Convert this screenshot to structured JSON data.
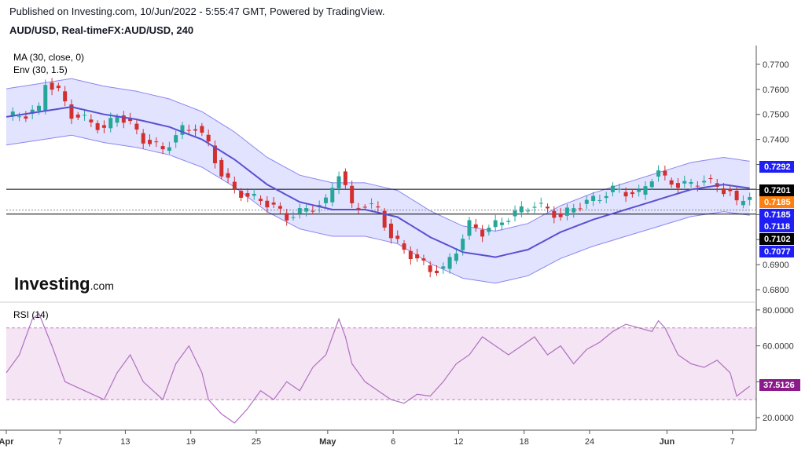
{
  "header": {
    "published": "Published on Investing.com, 10/Jun/2022 - 5:55:47 GMT, Powered by TradingView.",
    "symbol": "AUD/USD, Real-timeFX:AUD/USD, 240"
  },
  "logo": {
    "text": "Investing",
    "suffix": ".com"
  },
  "colors": {
    "up": "#26a69a",
    "down": "#d32f2f",
    "ma": "#5a50d0",
    "band_fill": "#d9dcff",
    "band_line": "#8c86f0",
    "rsi": "#b070c0",
    "rsi_fill": "#f4e4f4",
    "rsi_level": "#c080c8",
    "label_blue": "#1f1ff5",
    "label_orange": "#ff7f0e",
    "label_black": "#000000",
    "label_purple": "#8b1a8b"
  },
  "chart_data": [
    {
      "type": "candlestick",
      "indicators": [
        "MA (30, close, 0)",
        "Env (30, 1.5)"
      ],
      "ylim": [
        0.675,
        0.7775
      ],
      "yticks": [
        "0.7700",
        "0.7600",
        "0.7500",
        "0.7400",
        "0.7300",
        "0.7200",
        "0.7100",
        "0.7000",
        "0.6900",
        "0.6800"
      ],
      "xticks": [
        "Apr",
        "7",
        "13",
        "19",
        "25",
        "May",
        "6",
        "12",
        "18",
        "24",
        "Jun",
        "7"
      ],
      "close_path": [
        [
          0,
          0.749
        ],
        [
          3,
          0.75
        ],
        [
          5,
          0.752
        ],
        [
          6,
          0.763
        ],
        [
          8,
          0.759
        ],
        [
          10,
          0.75
        ],
        [
          13,
          0.747
        ],
        [
          15,
          0.744
        ],
        [
          17,
          0.75
        ],
        [
          19,
          0.746
        ],
        [
          21,
          0.74
        ],
        [
          24,
          0.736
        ],
        [
          27,
          0.744
        ],
        [
          29,
          0.745
        ],
        [
          31,
          0.738
        ],
        [
          33,
          0.726
        ],
        [
          35,
          0.72
        ],
        [
          37,
          0.717
        ],
        [
          39,
          0.716
        ],
        [
          41,
          0.713
        ],
        [
          43,
          0.709
        ],
        [
          45,
          0.711
        ],
        [
          47,
          0.713
        ],
        [
          49,
          0.715
        ],
        [
          51,
          0.727
        ],
        [
          52,
          0.721
        ],
        [
          53,
          0.713
        ],
        [
          55,
          0.714
        ],
        [
          57,
          0.712
        ],
        [
          59,
          0.701
        ],
        [
          61,
          0.696
        ],
        [
          63,
          0.692
        ],
        [
          65,
          0.688
        ],
        [
          67,
          0.688
        ],
        [
          69,
          0.696
        ],
        [
          71,
          0.706
        ],
        [
          73,
          0.703
        ],
        [
          75,
          0.706
        ],
        [
          77,
          0.709
        ],
        [
          79,
          0.712
        ],
        [
          81,
          0.714
        ],
        [
          83,
          0.712
        ],
        [
          85,
          0.709
        ],
        [
          87,
          0.713
        ],
        [
          89,
          0.715
        ],
        [
          91,
          0.717
        ],
        [
          93,
          0.72
        ],
        [
          95,
          0.719
        ],
        [
          97,
          0.718
        ],
        [
          99,
          0.725
        ],
        [
          100,
          0.727
        ],
        [
          101,
          0.724
        ],
        [
          103,
          0.722
        ],
        [
          105,
          0.722
        ],
        [
          107,
          0.724
        ],
        [
          109,
          0.721
        ],
        [
          111,
          0.719
        ],
        [
          112,
          0.714
        ],
        [
          114,
          0.7185
        ]
      ],
      "ma_path": [
        [
          0,
          0.749
        ],
        [
          5,
          0.751
        ],
        [
          10,
          0.753
        ],
        [
          15,
          0.75
        ],
        [
          20,
          0.748
        ],
        [
          25,
          0.745
        ],
        [
          30,
          0.74
        ],
        [
          35,
          0.732
        ],
        [
          40,
          0.722
        ],
        [
          45,
          0.715
        ],
        [
          50,
          0.712
        ],
        [
          55,
          0.712
        ],
        [
          60,
          0.709
        ],
        [
          65,
          0.701
        ],
        [
          70,
          0.695
        ],
        [
          75,
          0.693
        ],
        [
          80,
          0.696
        ],
        [
          85,
          0.703
        ],
        [
          90,
          0.708
        ],
        [
          95,
          0.712
        ],
        [
          100,
          0.716
        ],
        [
          105,
          0.72
        ],
        [
          110,
          0.722
        ],
        [
          114,
          0.7205
        ]
      ],
      "envelope_pct": 1.5,
      "horizontal_lines": [
        0.7201,
        0.7102,
        0.7118
      ],
      "price_labels": [
        {
          "text": "0.7292",
          "value": 0.7292,
          "color": "label_blue"
        },
        {
          "text": "0.7201",
          "value": 0.7201,
          "color": "label_black"
        },
        {
          "text": "0.7185",
          "value": 0.7185,
          "color": "label_orange"
        },
        {
          "text": "0.7185",
          "value": 0.7185,
          "color": "label_blue"
        },
        {
          "text": "0.7118",
          "value": 0.7118,
          "color": "label_blue"
        },
        {
          "text": "0.7102",
          "value": 0.7102,
          "color": "label_black"
        },
        {
          "text": "0.7077",
          "value": 0.7077,
          "color": "label_blue"
        }
      ]
    },
    {
      "type": "line",
      "title": "RSI (14)",
      "ylim": [
        13,
        83
      ],
      "yticks": [
        "80.0000",
        "60.0000",
        "40.0000",
        "20.0000"
      ],
      "levels": [
        70,
        30
      ],
      "current": "37.5126",
      "values_path": [
        [
          0,
          45
        ],
        [
          2,
          55
        ],
        [
          4,
          75
        ],
        [
          5,
          78
        ],
        [
          7,
          60
        ],
        [
          9,
          40
        ],
        [
          12,
          35
        ],
        [
          15,
          30
        ],
        [
          17,
          45
        ],
        [
          19,
          55
        ],
        [
          21,
          40
        ],
        [
          24,
          30
        ],
        [
          26,
          50
        ],
        [
          28,
          60
        ],
        [
          30,
          45
        ],
        [
          31,
          30
        ],
        [
          33,
          22
        ],
        [
          35,
          17
        ],
        [
          37,
          25
        ],
        [
          39,
          35
        ],
        [
          41,
          30
        ],
        [
          43,
          40
        ],
        [
          45,
          35
        ],
        [
          47,
          48
        ],
        [
          49,
          55
        ],
        [
          51,
          75
        ],
        [
          52,
          65
        ],
        [
          53,
          50
        ],
        [
          55,
          40
        ],
        [
          57,
          35
        ],
        [
          59,
          30
        ],
        [
          61,
          28
        ],
        [
          63,
          33
        ],
        [
          65,
          32
        ],
        [
          67,
          40
        ],
        [
          69,
          50
        ],
        [
          71,
          55
        ],
        [
          73,
          65
        ],
        [
          75,
          60
        ],
        [
          77,
          55
        ],
        [
          79,
          60
        ],
        [
          81,
          65
        ],
        [
          83,
          55
        ],
        [
          85,
          60
        ],
        [
          87,
          50
        ],
        [
          89,
          58
        ],
        [
          91,
          62
        ],
        [
          93,
          68
        ],
        [
          95,
          72
        ],
        [
          97,
          70
        ],
        [
          99,
          68
        ],
        [
          100,
          74
        ],
        [
          101,
          70
        ],
        [
          103,
          55
        ],
        [
          105,
          50
        ],
        [
          107,
          48
        ],
        [
          109,
          52
        ],
        [
          111,
          45
        ],
        [
          112,
          32
        ],
        [
          114,
          37.5
        ]
      ]
    }
  ]
}
